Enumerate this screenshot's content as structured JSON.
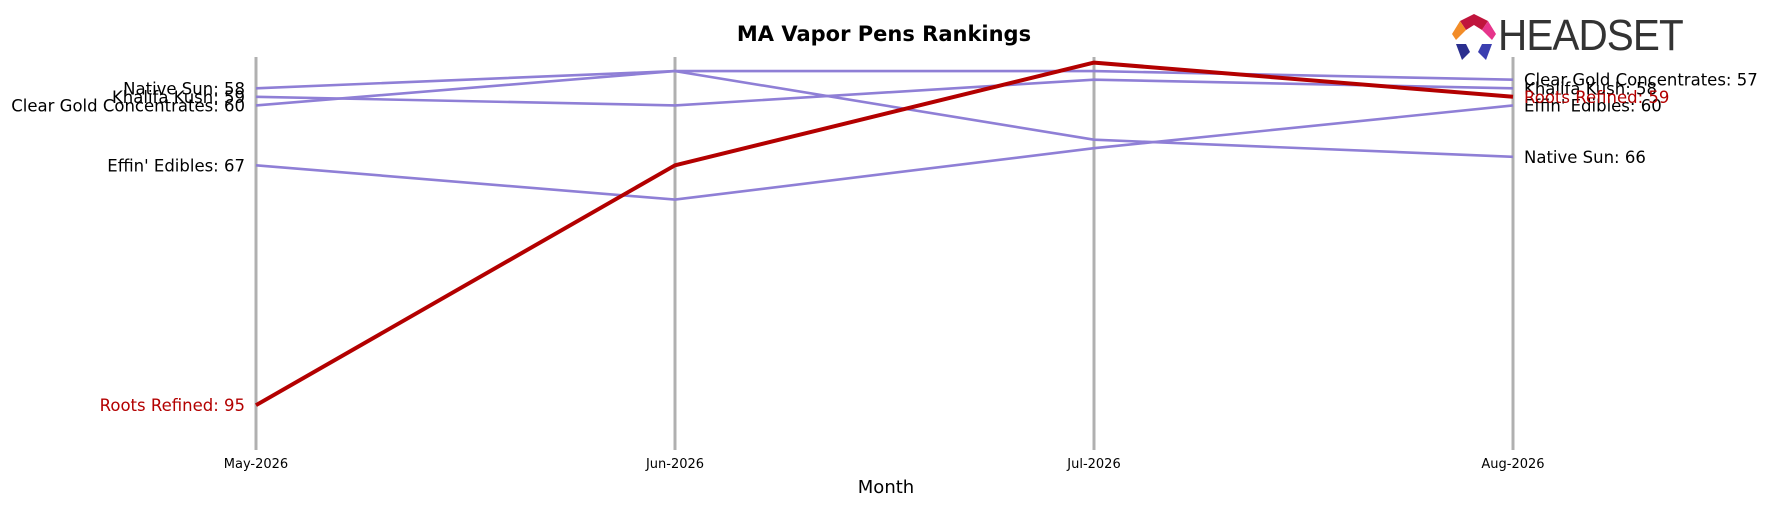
{
  "header": {
    "title": "MA Vapor Pens Rankings",
    "logo_text": "HEADSET"
  },
  "colors": {
    "highlight": "#b30000",
    "other": "#8f7fd6",
    "gridline": "#b0b0b0"
  },
  "chart_data": {
    "type": "line",
    "title": "MA Vapor Pens Rankings",
    "xlabel": "Month",
    "ylabel": "",
    "categories": [
      "May-2026",
      "Jun-2026",
      "Jul-2026",
      "Aug-2026"
    ],
    "y_inverted": true,
    "ylim": [
      100,
      54
    ],
    "grid": "vertical lines at each month",
    "legend": "none (series labeled at line ends)",
    "series": [
      {
        "name": "Roots Refined",
        "highlight": true,
        "values": [
          95,
          67,
          55,
          59
        ],
        "start_label": "Roots Refined: 95",
        "end_label": "Roots Refined: 59"
      },
      {
        "name": "Native Sun",
        "values": [
          58,
          56,
          64,
          66
        ],
        "start_label": "Native Sun: 58",
        "end_label": "Native Sun: 66"
      },
      {
        "name": "Khalifa Kush",
        "values": [
          59,
          60,
          57,
          58
        ],
        "start_label": "Khalifa Kush: 59",
        "end_label": "Khalifa Kush: 58"
      },
      {
        "name": "Clear Gold Concentrates",
        "values": [
          60,
          56,
          56,
          57
        ],
        "start_label": "Clear Gold Concentrates: 60",
        "end_label": "Clear Gold Concentrates: 57"
      },
      {
        "name": "Effin' Edibles",
        "values": [
          67,
          71,
          65,
          60
        ],
        "start_label": "Effin' Edibles: 67",
        "end_label": "Effin' Edibles: 60"
      }
    ]
  }
}
